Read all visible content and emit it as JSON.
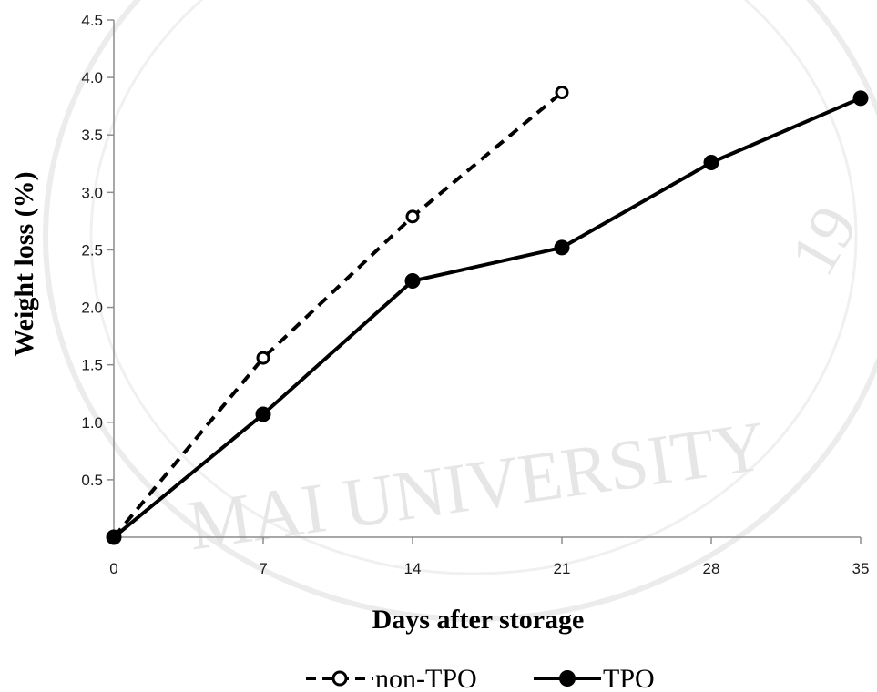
{
  "chart_data": {
    "type": "line",
    "xlabel": "Days after storage",
    "ylabel": "Weight loss (%)",
    "x_ticks": [
      "0",
      "7",
      "14",
      "21",
      "28",
      "35"
    ],
    "y_ticks": [
      "0.5",
      "1.0",
      "1.5",
      "2.0",
      "2.5",
      "3.0",
      "3.5",
      "4.0",
      "4.5"
    ],
    "xlim": [
      0,
      35
    ],
    "ylim": [
      0,
      4.5
    ],
    "grid": false,
    "legend_position": "bottom",
    "series": [
      {
        "name": "non-TPO",
        "style": "dashed",
        "marker": "open-circle",
        "x": [
          0,
          7,
          14,
          21
        ],
        "y": [
          0,
          1.56,
          2.79,
          3.87
        ]
      },
      {
        "name": "TPO",
        "style": "solid",
        "marker": "filled-circle",
        "x": [
          0,
          7,
          14,
          21,
          28,
          35
        ],
        "y": [
          0,
          1.07,
          2.23,
          2.52,
          3.26,
          3.82
        ]
      }
    ]
  },
  "watermark": {
    "text": "CHIANG MAI UNIVERSITY",
    "arc_text": "MAI UNIVERSITY",
    "year_fragment": "19",
    "color": "#e6e6e6"
  }
}
